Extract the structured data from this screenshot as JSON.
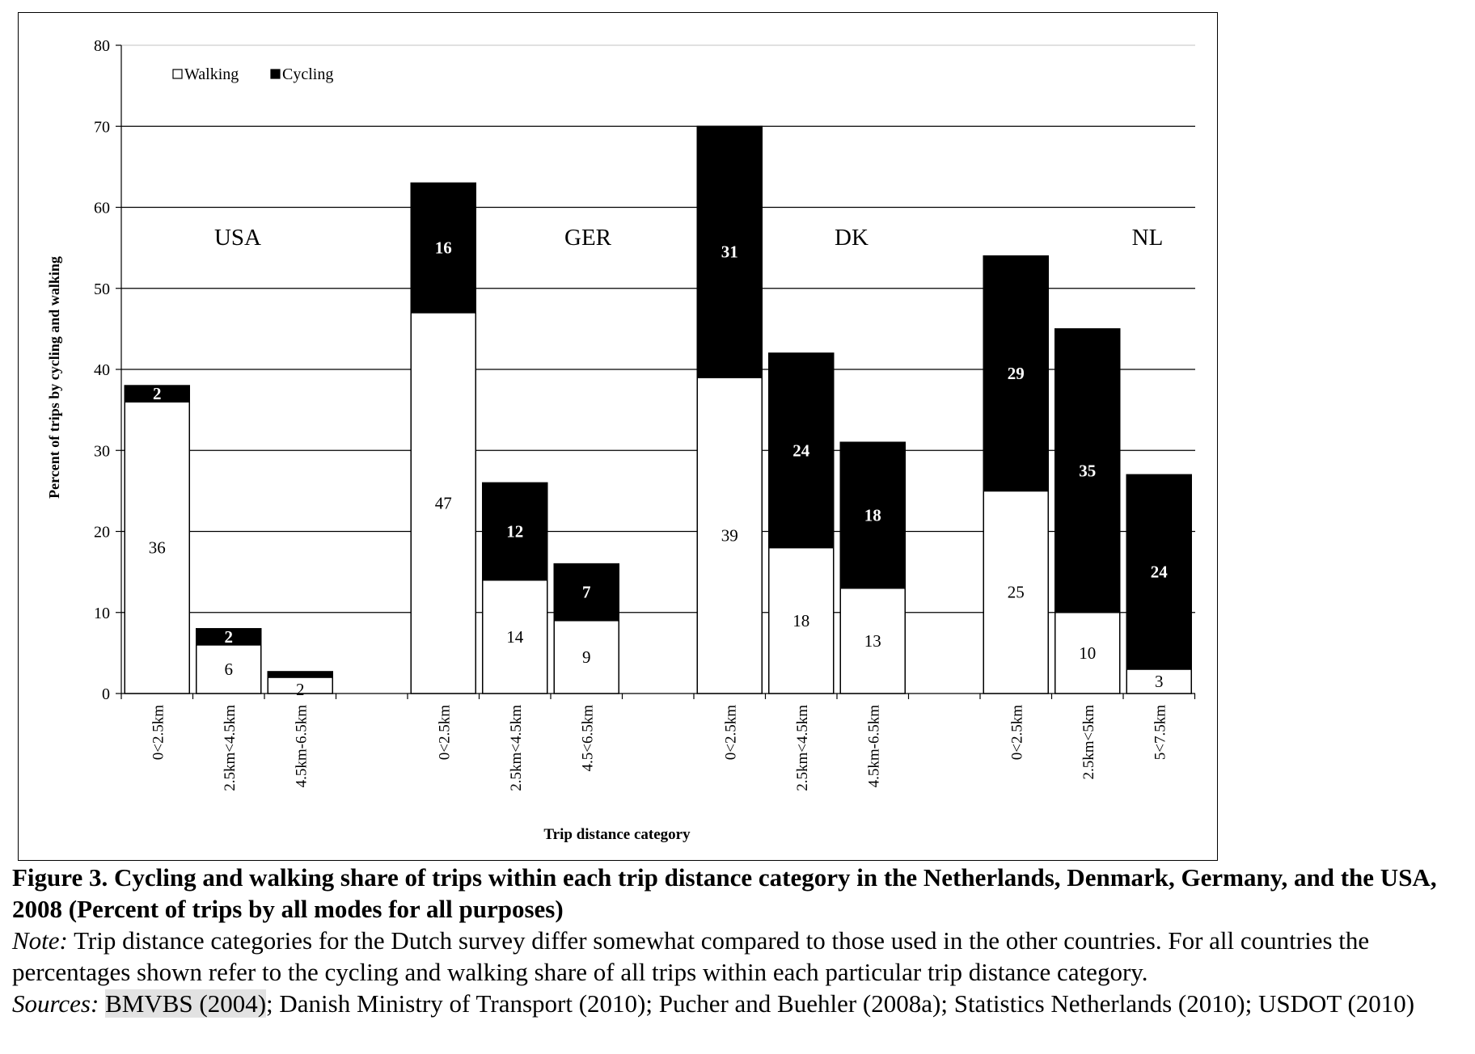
{
  "chart_data": {
    "type": "bar",
    "stacked": true,
    "ylabel": "Percent of trips by cycling and walking",
    "xlabel": "Trip distance category",
    "ylim": [
      0,
      80
    ],
    "yticks": [
      0,
      10,
      20,
      30,
      40,
      50,
      60,
      70,
      80
    ],
    "grid": true,
    "legend_position": "top-left",
    "series": [
      {
        "name": "Walking",
        "color": "#ffffff"
      },
      {
        "name": "Cycling",
        "color": "#000000"
      }
    ],
    "groups": [
      {
        "name": "USA",
        "categories": [
          {
            "label": "0<2.5km",
            "walking": 36,
            "cycling": 2,
            "walking_label": "36",
            "cycling_label": "2"
          },
          {
            "label": "2.5km<4.5km",
            "walking": 6,
            "cycling": 2,
            "walking_label": "6",
            "cycling_label": "2"
          },
          {
            "label": "4.5km-6.5km",
            "walking": 2,
            "cycling": 0.7,
            "walking_label": "2",
            "cycling_label": ""
          }
        ]
      },
      {
        "name": "GER",
        "categories": [
          {
            "label": "0<2.5km",
            "walking": 47,
            "cycling": 16,
            "walking_label": "47",
            "cycling_label": "16"
          },
          {
            "label": "2.5km<4.5km",
            "walking": 14,
            "cycling": 12,
            "walking_label": "14",
            "cycling_label": "12"
          },
          {
            "label": "4.5<6.5km",
            "walking": 9,
            "cycling": 7,
            "walking_label": "9",
            "cycling_label": "7"
          }
        ]
      },
      {
        "name": "DK",
        "categories": [
          {
            "label": "0<2.5km",
            "walking": 39,
            "cycling": 31,
            "walking_label": "39",
            "cycling_label": "31"
          },
          {
            "label": "2.5km<4.5km",
            "walking": 18,
            "cycling": 24,
            "walking_label": "18",
            "cycling_label": "24"
          },
          {
            "label": "4.5km-6.5km",
            "walking": 13,
            "cycling": 18,
            "walking_label": "13",
            "cycling_label": "18"
          }
        ]
      },
      {
        "name": "NL",
        "categories": [
          {
            "label": "0<2.5km",
            "walking": 25,
            "cycling": 29,
            "walking_label": "25",
            "cycling_label": "29"
          },
          {
            "label": "2.5km<5km",
            "walking": 10,
            "cycling": 35,
            "walking_label": "10",
            "cycling_label": "35"
          },
          {
            "label": "5<7.5km",
            "walking": 3,
            "cycling": 24,
            "walking_label": "3",
            "cycling_label": "24"
          }
        ]
      }
    ]
  },
  "caption": {
    "title": "Figure 3. Cycling and walking share of trips within each trip distance category in the Netherlands, Denmark, Germany, and the USA, 2008 (Percent of trips by all modes for all purposes)",
    "note_label": "Note:",
    "note_text": " Trip distance categories for the Dutch survey differ somewhat compared to those used in the other countries. For all countries the percentages shown refer to the cycling and walking share of all trips within each particular trip distance category.",
    "sources_label": "Sources:",
    "sources_highlight": "BMVBS (2004)",
    "sources_text": "; Danish Ministry of Transport (2010); Pucher and Buehler (2008a); Statistics Netherlands (2010); USDOT (2010)"
  }
}
